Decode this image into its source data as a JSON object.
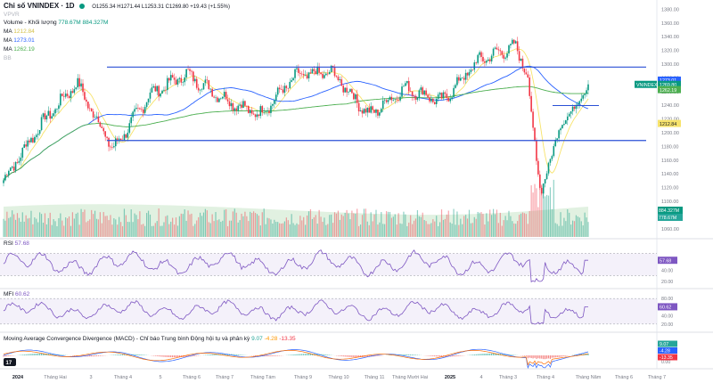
{
  "header": {
    "title": "Chỉ số VNINDEX · 1D",
    "ohlc": "O1255.34 H1271.44 L1253.31 C1269.80 +19.43 (+1.55%)",
    "source": "VPVR",
    "volume_label": "Volume - Khối lượng",
    "volume_values": "778.67M  884.327M",
    "ma_label": "MA",
    "ma1_value": "1212.84",
    "ma2_value": "1273.01",
    "ma3_value": "1262.19",
    "bb_label": "BB"
  },
  "rsi_label": "RSI",
  "rsi_value": "57.68",
  "mfi_label": "MFI",
  "mfi_value": "60.62",
  "macd_label": "Moving Average Convergence Divergence (MACD) - Chỉ báo Trung bình Động hội tụ và phân kỳ",
  "macd_values": [
    "9.07",
    "-4.28",
    "-13.35"
  ],
  "price_axis": [
    "1380.00",
    "1360.00",
    "1340.00",
    "1320.00",
    "1300.00",
    "1280.00",
    "1260.00",
    "1240.00",
    "1220.00",
    "1200.00",
    "1180.00",
    "1160.00",
    "1140.00",
    "1120.00",
    "1100.00",
    "1080.00",
    "1060.00"
  ],
  "price_tags": [
    {
      "text": "1273.01",
      "color": "#2962ff"
    },
    {
      "text": "1269.80",
      "color": "#089981"
    },
    {
      "text": "1262.19",
      "color": "#4caf50"
    },
    {
      "text": "1212.84",
      "color": "#f7e36b"
    },
    {
      "text": "884.327M",
      "color": "#089981"
    },
    {
      "text": "778.67M",
      "color": "#26a69a"
    }
  ],
  "symbol_tag": "VNINDEX",
  "rsi_axis": [
    "60.00",
    "40.00",
    "20.00"
  ],
  "mfi_axis": [
    "80.00",
    "60.00",
    "40.00",
    "20.00"
  ],
  "macd_axis": [
    "50.00",
    "0.00"
  ],
  "time_axis": [
    "2024",
    "Tháng Hai",
    "3",
    "Tháng 4",
    "5",
    "Tháng 6",
    "Tháng 7",
    "Tháng Tám",
    "Tháng 9",
    "Tháng 10",
    "Tháng 11",
    "Tháng Mười Hai",
    "2025",
    "4",
    "Tháng 3",
    "Tháng 4",
    "Tháng Năm",
    "Tháng 6",
    "Tháng 7"
  ],
  "colors": {
    "up": "#089981",
    "down": "#f23645",
    "ma_short": "#f7e36b",
    "ma_mid": "#2962ff",
    "ma_long": "#4caf50",
    "level": "#2a50d6",
    "oscillator": "#7e57c2"
  },
  "chart_data": {
    "type": "candlestick",
    "symbol": "VNINDEX",
    "interval": "1D",
    "ylim": [
      1050,
      1385
    ],
    "levels": [
      1295,
      1188
    ],
    "key_points": [
      {
        "date": "2024-01",
        "close": 1130
      },
      {
        "date": "2024-02",
        "close": 1210
      },
      {
        "date": "2024-03",
        "close": 1272
      },
      {
        "date": "2024-04",
        "close": 1175
      },
      {
        "date": "2024-05",
        "close": 1255
      },
      {
        "date": "2024-06",
        "close": 1285
      },
      {
        "date": "2024-07",
        "close": 1250
      },
      {
        "date": "2024-08",
        "close": 1225
      },
      {
        "date": "2024-09",
        "close": 1282
      },
      {
        "date": "2024-10",
        "close": 1287
      },
      {
        "date": "2024-11",
        "close": 1225
      },
      {
        "date": "2024-12",
        "close": 1265
      },
      {
        "date": "2025-01",
        "close": 1245
      },
      {
        "date": "2025-02",
        "close": 1305
      },
      {
        "date": "2025-03",
        "close": 1325
      },
      {
        "date": "2025-04",
        "close": 1210
      },
      {
        "date": "2025-05",
        "close": 1269.8
      }
    ],
    "ma_series": [
      "1212.84",
      "1273.01",
      "1262.19"
    ],
    "rsi": 57.68,
    "mfi": 60.62,
    "macd": {
      "macd": 9.07,
      "signal": -4.28,
      "histogram": -13.35
    }
  }
}
